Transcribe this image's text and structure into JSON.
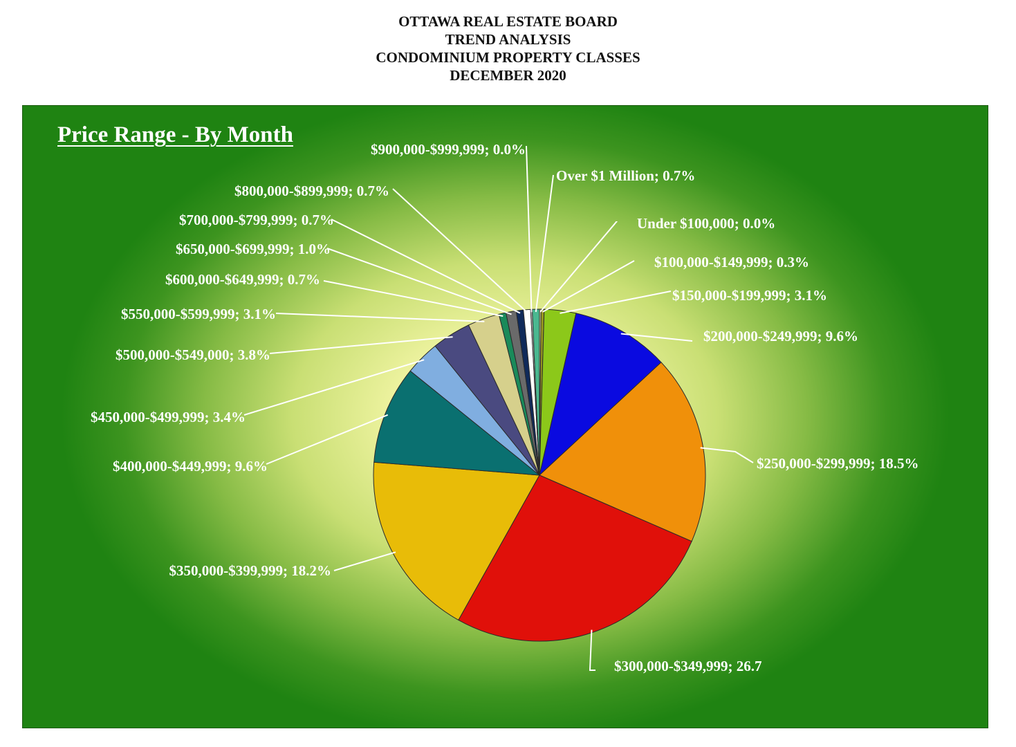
{
  "header": {
    "line1": "OTTAWA REAL ESTATE BOARD",
    "line2": "TREND ANALYSIS",
    "line3": "CONDOMINIUM PROPERTY CLASSES",
    "line4": "DECEMBER 2020"
  },
  "chart_data": {
    "type": "pie",
    "title": "Price Range - By Month",
    "slices": [
      {
        "label": "Under $100,000",
        "display": "Under $100,000; 0.0%",
        "value": 0.0,
        "color": "#e8e8a8"
      },
      {
        "label": "$100,000-$149,999",
        "display": "$100,000-$149,999; 0.3%",
        "value": 0.3,
        "color": "#9a9a20"
      },
      {
        "label": "$150,000-$199,999",
        "display": "$150,000-$199,999; 3.1%",
        "value": 3.1,
        "color": "#8cc81a"
      },
      {
        "label": "$200,000-$249,999",
        "display": "$200,000-$249,999; 9.6%",
        "value": 9.6,
        "color": "#0a0ae0"
      },
      {
        "label": "$250,000-$299,999",
        "display": "$250,000-$299,999; 18.5%",
        "value": 18.5,
        "color": "#f0900a"
      },
      {
        "label": "$300,000-$349,999",
        "display": "$300,000-$349,999; 26.7",
        "value": 26.7,
        "color": "#e0100a"
      },
      {
        "label": "$350,000-$399,999",
        "display": "$350,000-$399,999; 18.2%",
        "value": 18.2,
        "color": "#e8bc08"
      },
      {
        "label": "$400,000-$449,999",
        "display": "$400,000-$449,999; 9.6%",
        "value": 9.6,
        "color": "#0a7070"
      },
      {
        "label": "$450,000-$499,999",
        "display": "$450,000-$499,999; 3.4%",
        "value": 3.4,
        "color": "#80aee0"
      },
      {
        "label": "$500,000-$549,000",
        "display": "$500,000-$549,000; 3.8%",
        "value": 3.8,
        "color": "#4a4a80"
      },
      {
        "label": "$550,000-$599,999",
        "display": "$550,000-$599,999; 3.1%",
        "value": 3.1,
        "color": "#d6d08c"
      },
      {
        "label": "$600,000-$649,999",
        "display": "$600,000-$649,999; 0.7%",
        "value": 0.7,
        "color": "#1a8a5a"
      },
      {
        "label": "$650,000-$699,999",
        "display": "$650,000-$699,999; 1.0%",
        "value": 1.0,
        "color": "#6a6a6a"
      },
      {
        "label": "$700,000-$799,999",
        "display": "$700,000-$799,999; 0.7%",
        "value": 0.7,
        "color": "#102a5a"
      },
      {
        "label": "$800,000-$899,999",
        "display": "$800,000-$899,999; 0.7%",
        "value": 0.7,
        "color": "#ffffff"
      },
      {
        "label": "$900,000-$999,999",
        "display": "$900,000-$999,999; 0.0%",
        "value": 0.0,
        "color": "#d0d0d0"
      },
      {
        "label": "Over $1 Million",
        "display": "Over $1 Million; 0.7%",
        "value": 0.7,
        "color": "#4ab890"
      }
    ]
  }
}
